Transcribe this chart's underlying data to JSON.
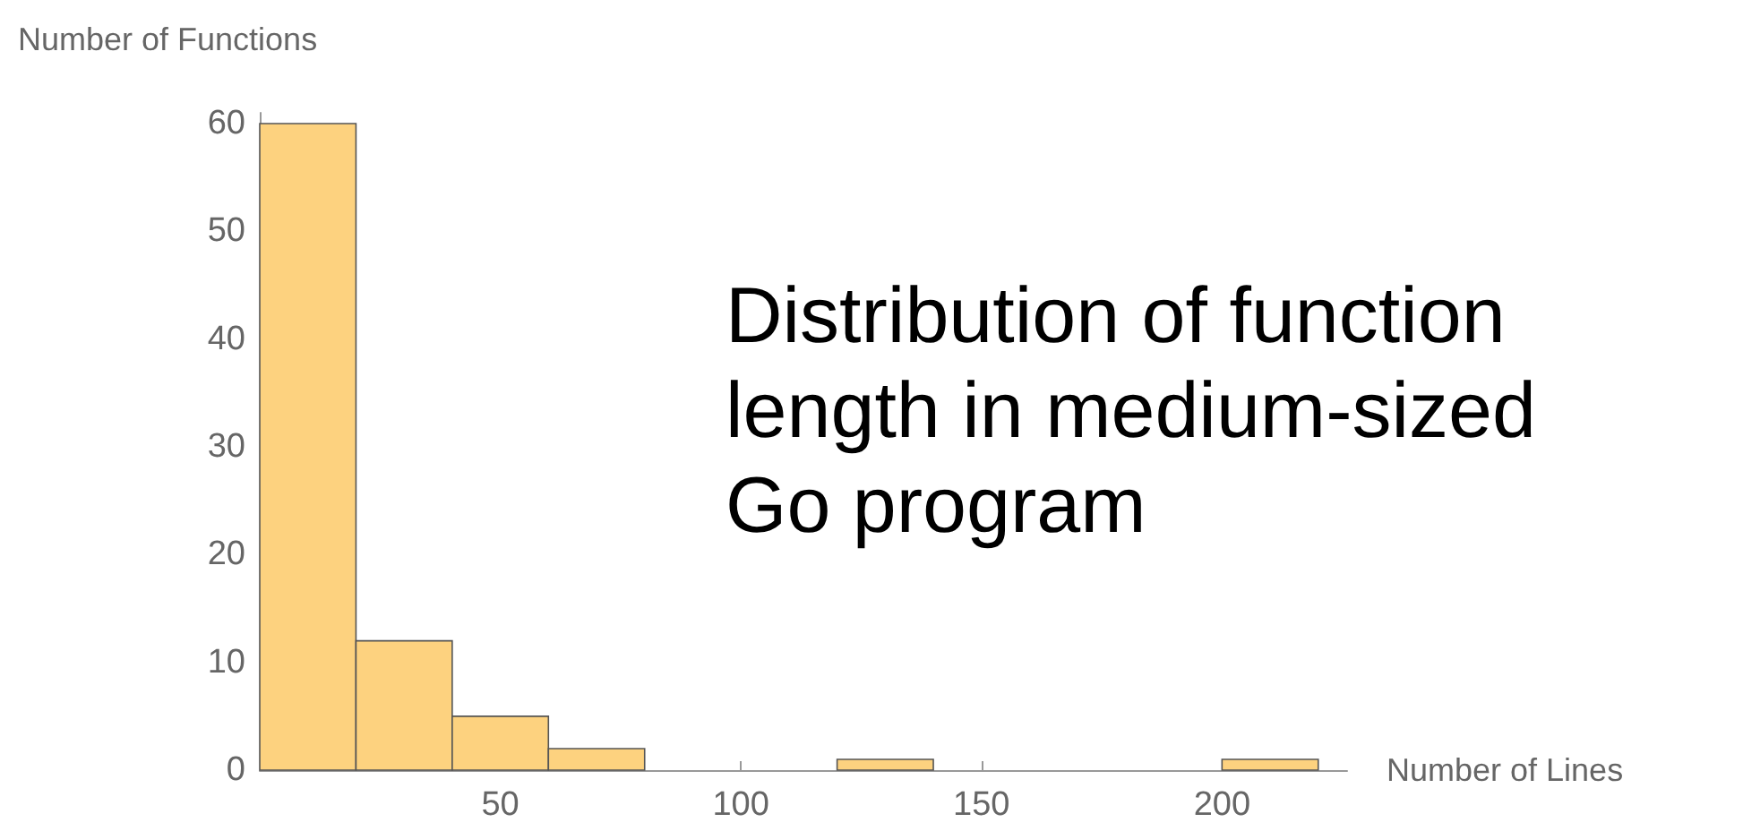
{
  "chart_data": {
    "type": "histogram",
    "xlabel": "Number of Lines",
    "ylabel": "Number of Functions",
    "bins": [
      0,
      20,
      40,
      60,
      80,
      100,
      120,
      140,
      160,
      180,
      200,
      220
    ],
    "values": [
      60,
      12,
      5,
      2,
      0,
      0,
      1,
      0,
      0,
      0,
      1
    ],
    "color": "#fdd27f",
    "xlim": [
      0,
      226
    ],
    "xticks": [
      50,
      100,
      150,
      200
    ],
    "ylim": [
      0,
      61
    ],
    "yticks": [
      0,
      10,
      20,
      30,
      40,
      50,
      60
    ],
    "grid": false,
    "annotations": [
      "Distribution of function\nlength in medium-sized\nGo program"
    ]
  }
}
